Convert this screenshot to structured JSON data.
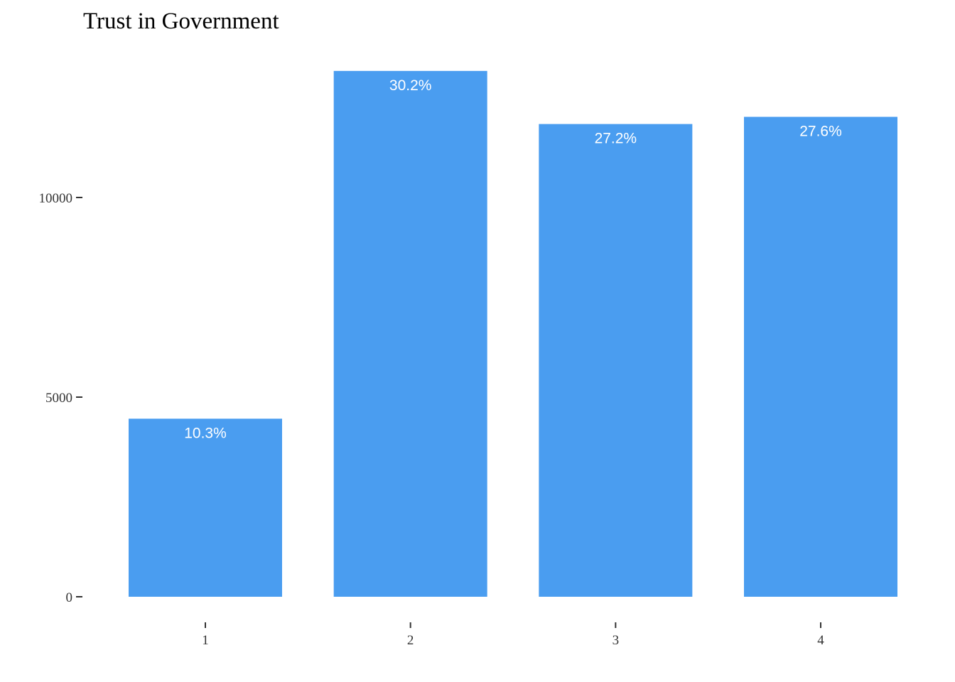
{
  "chart_data": {
    "type": "bar",
    "title": "Trust in Government",
    "xlabel": "",
    "ylabel": "",
    "categories": [
      "1",
      "2",
      "3",
      "4"
    ],
    "values": [
      4460,
      13170,
      11840,
      12020
    ],
    "labels": [
      "10.3%",
      "30.2%",
      "27.2%",
      "27.6%"
    ],
    "ylim": [
      0,
      13500
    ],
    "yticks": [
      0,
      5000,
      10000
    ],
    "ytick_labels": [
      "0",
      "5000",
      "10000"
    ],
    "grid": false,
    "legend": "none",
    "bar_color": "#4A9DF0",
    "label_color": "#ffffff"
  }
}
